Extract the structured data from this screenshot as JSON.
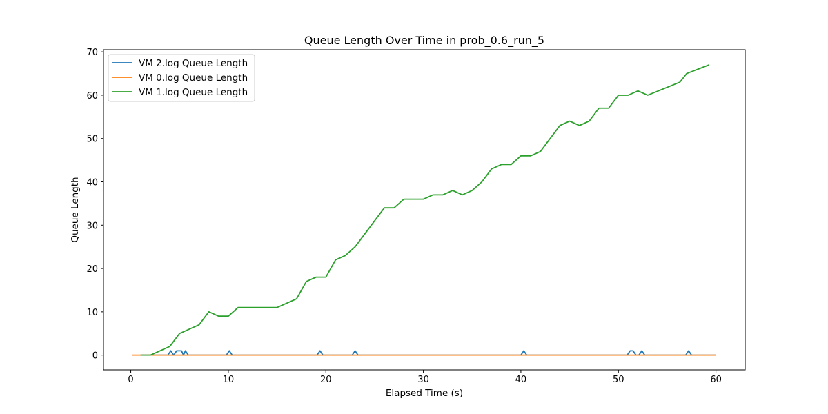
{
  "chart_data": {
    "type": "line",
    "title": "Queue Length Over Time in prob_0.6_run_5",
    "xlabel": "Elapsed Time (s)",
    "ylabel": "Queue Length",
    "xlim": [
      -2.8,
      63.0
    ],
    "ylim": [
      -3.4,
      70.5
    ],
    "xticks": [
      0,
      10,
      20,
      30,
      40,
      50,
      60
    ],
    "yticks": [
      0,
      10,
      20,
      30,
      40,
      50,
      60,
      70
    ],
    "grid": false,
    "legend_position": "upper-left",
    "series": [
      {
        "name": "VM 2.log Queue Length",
        "color": "#1f77b4",
        "points": [
          [
            1.0,
            0
          ],
          [
            3.8,
            0
          ],
          [
            4.1,
            1
          ],
          [
            4.4,
            0
          ],
          [
            4.7,
            1
          ],
          [
            5.2,
            1
          ],
          [
            5.4,
            0
          ],
          [
            5.6,
            1
          ],
          [
            5.9,
            0
          ],
          [
            9.8,
            0
          ],
          [
            10.1,
            1
          ],
          [
            10.4,
            0
          ],
          [
            19.1,
            0
          ],
          [
            19.4,
            1
          ],
          [
            19.7,
            0
          ],
          [
            22.7,
            0
          ],
          [
            23.0,
            1
          ],
          [
            23.3,
            0
          ],
          [
            40.0,
            0
          ],
          [
            40.3,
            1
          ],
          [
            40.6,
            0
          ],
          [
            50.9,
            0
          ],
          [
            51.2,
            1
          ],
          [
            51.5,
            1
          ],
          [
            51.8,
            0
          ],
          [
            52.1,
            0
          ],
          [
            52.4,
            1
          ],
          [
            52.7,
            0
          ],
          [
            56.9,
            0
          ],
          [
            57.2,
            1
          ],
          [
            57.5,
            0
          ],
          [
            60.0,
            0
          ]
        ]
      },
      {
        "name": "VM 0.log Queue Length",
        "color": "#ff7f0e",
        "points": [
          [
            0.1,
            0
          ],
          [
            60.0,
            0
          ]
        ]
      },
      {
        "name": "VM 1.log Queue Length",
        "color": "#2ca02c",
        "points": [
          [
            1.0,
            0
          ],
          [
            2.0,
            0
          ],
          [
            4.0,
            2
          ],
          [
            5.0,
            5
          ],
          [
            7.0,
            7
          ],
          [
            8.0,
            10
          ],
          [
            9.0,
            9
          ],
          [
            10.0,
            9
          ],
          [
            11.0,
            11
          ],
          [
            15.0,
            11
          ],
          [
            17.0,
            13
          ],
          [
            18.0,
            17
          ],
          [
            19.0,
            18
          ],
          [
            20.0,
            18
          ],
          [
            21.0,
            22
          ],
          [
            22.0,
            23
          ],
          [
            23.0,
            25
          ],
          [
            26.0,
            34
          ],
          [
            27.0,
            34
          ],
          [
            28.0,
            36
          ],
          [
            30.0,
            36
          ],
          [
            31.0,
            37
          ],
          [
            32.0,
            37
          ],
          [
            33.0,
            38
          ],
          [
            34.0,
            37
          ],
          [
            35.0,
            38
          ],
          [
            36.0,
            40
          ],
          [
            37.0,
            43
          ],
          [
            38.0,
            44
          ],
          [
            39.0,
            44
          ],
          [
            40.0,
            46
          ],
          [
            41.0,
            46
          ],
          [
            42.0,
            47
          ],
          [
            44.0,
            53
          ],
          [
            45.0,
            54
          ],
          [
            46.0,
            53
          ],
          [
            47.0,
            54
          ],
          [
            48.0,
            57
          ],
          [
            49.0,
            57
          ],
          [
            50.0,
            60
          ],
          [
            51.0,
            60
          ],
          [
            52.0,
            61
          ],
          [
            53.0,
            60
          ],
          [
            56.3,
            63
          ],
          [
            57.0,
            65
          ],
          [
            59.3,
            67
          ]
        ]
      }
    ]
  }
}
